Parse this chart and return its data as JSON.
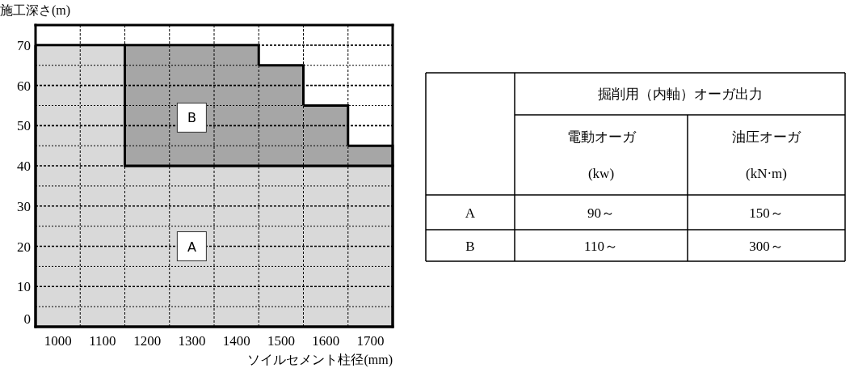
{
  "chart_data": [
    {
      "type": "bar",
      "stacked": true,
      "xlabel": "ソイルセメント柱径(mm)",
      "ylabel": "施工深さ(m)",
      "categories": [
        "1000",
        "1100",
        "1200",
        "1300",
        "1400",
        "1500",
        "1600",
        "1700"
      ],
      "series": [
        {
          "color": "#d9d9d9",
          "values": [
            70,
            70,
            40,
            40,
            40,
            40,
            40,
            40
          ]
        },
        {
          "color": "#a6a6a6",
          "values": [
            0,
            0,
            30,
            30,
            30,
            25,
            15,
            5
          ]
        }
      ],
      "ylim": [
        0,
        75
      ],
      "yticks": [
        0,
        {
          "value": 5,
          "label": null
        },
        10,
        {
          "value": 15,
          "label": null
        },
        20,
        {
          "value": 25,
          "label": null
        },
        30,
        {
          "value": 35,
          "label": null
        },
        40,
        {
          "value": 45,
          "label": null
        },
        50,
        {
          "value": 55,
          "label": null
        },
        60,
        {
          "value": 65,
          "label": null
        },
        70
      ],
      "grid": true,
      "annotations": [
        {
          "text": "A",
          "x": "1300",
          "y": 20
        },
        {
          "text": "B",
          "x": "1300",
          "y": 52
        }
      ]
    },
    {
      "type": "other",
      "title": "掘削用（内軸）オーガ出力",
      "categories": [
        "A",
        "B"
      ],
      "series": [
        {
          "name": "電動オーガ",
          "values": [
            90,
            110
          ],
          "value_labels": [
            "90～",
            "110～"
          ]
        },
        {
          "name": "油圧オーガ",
          "values": [
            150,
            300
          ],
          "value_labels": [
            "150～",
            "300～"
          ]
        }
      ],
      "annotations": [
        "(kw)",
        "(kN·m)"
      ]
    }
  ]
}
